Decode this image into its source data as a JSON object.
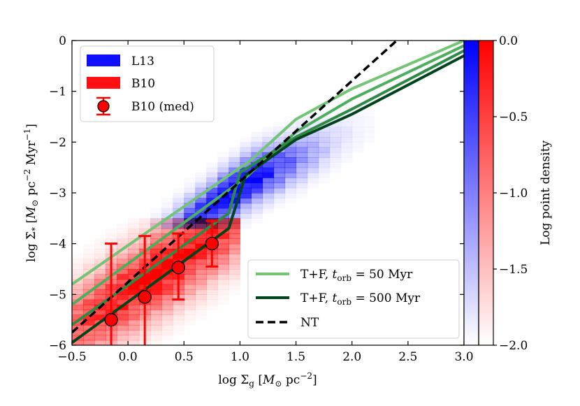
{
  "chart_data": {
    "type": "scatter",
    "title": "",
    "xlabel": "log Σ_g [M_⊙ pc^-2]",
    "ylabel": "log Σ̇_* [M_⊙ pc^-2 Myr^-1]",
    "xlim": [
      -0.5,
      3.0
    ],
    "ylim": [
      -6,
      0
    ],
    "xticks": [
      "−0.5",
      "0.0",
      "0.5",
      "1.0",
      "1.5",
      "2.0",
      "2.5",
      "3.0"
    ],
    "yticks": [
      "−6",
      "−5",
      "−4",
      "−3",
      "−2",
      "−1",
      "0"
    ],
    "xtick_values": [
      -0.5,
      0.0,
      0.5,
      1.0,
      1.5,
      2.0,
      2.5,
      3.0
    ],
    "ytick_values": [
      -6,
      -5,
      -4,
      -3,
      -2,
      -1,
      0
    ],
    "colorbar": {
      "label": "Log point density",
      "range": [
        -2.0,
        0.0
      ],
      "ticks": [
        "−2.0",
        "−1.5",
        "−1.0",
        "−0.5",
        "0.0"
      ],
      "tick_values": [
        -2.0,
        -1.5,
        -1.0,
        -0.5,
        0.0
      ]
    },
    "legend_upper": {
      "placement": "top-left",
      "entries": [
        {
          "label": "L13",
          "color": "#1010ff"
        },
        {
          "label": "B10",
          "color": "#ff1010"
        },
        {
          "label": "B10 (med)",
          "color": "#ff0000"
        }
      ]
    },
    "legend_lower": {
      "placement": "bottom-right",
      "entries": [
        {
          "label_prefix": "T+F, ",
          "label_var": "t",
          "label_sub": "orb",
          "label_suffix": " = 50 Myr",
          "color": "#74c476"
        },
        {
          "label_prefix": "T+F, ",
          "label_var": "t",
          "label_sub": "orb",
          "label_suffix": " = 500 Myr",
          "color": "#00441b"
        },
        {
          "label": "NT",
          "color": "#000000"
        }
      ]
    },
    "b10_median": {
      "x": [
        -0.15,
        0.15,
        0.45,
        0.75
      ],
      "y": [
        -5.5,
        -5.05,
        -4.47,
        -4.0
      ],
      "yerr_low": [
        -6.0,
        -6.0,
        -5.1,
        -4.45
      ],
      "yerr_high": [
        -4.0,
        -3.85,
        -3.8,
        -3.55
      ]
    },
    "nt_line": {
      "x": [
        -0.5,
        2.4
      ],
      "y": [
        -5.75,
        0.0
      ]
    },
    "tf_models": [
      {
        "name": "tf-50",
        "color": "#74c476",
        "x": [
          -0.5,
          1.1,
          1.5,
          2.0,
          3.0
        ],
        "y": [
          -4.8,
          -2.35,
          -1.55,
          -0.95,
          0.0
        ]
      },
      {
        "name": "tf-mid1",
        "color": "#4daf5e",
        "x": [
          -0.5,
          1.05,
          1.5,
          2.0,
          3.0
        ],
        "y": [
          -5.2,
          -2.7,
          -1.8,
          -1.15,
          -0.1
        ]
      },
      {
        "name": "tf-mid2",
        "color": "#2e8b45",
        "x": [
          -0.5,
          0.9,
          1.0,
          1.5,
          2.0,
          3.0
        ],
        "y": [
          -5.6,
          -3.4,
          -2.6,
          -1.9,
          -1.35,
          -0.2
        ]
      },
      {
        "name": "tf-500",
        "color": "#00441b",
        "x": [
          -0.5,
          0.9,
          1.05,
          1.5,
          2.0,
          3.0
        ],
        "y": [
          -5.95,
          -3.7,
          -2.65,
          -1.95,
          -1.45,
          -0.3
        ]
      }
    ],
    "b10_density": {
      "color": "#ff0000",
      "bin_size": 0.1,
      "x_range": [
        -0.5,
        1.0
      ],
      "y_range": [
        -6.0,
        -3.5
      ],
      "center": [
        0.3,
        -4.7
      ]
    },
    "l13_density": {
      "color": "#0000ff",
      "bin_size": 0.1,
      "x_range": [
        0.2,
        2.5
      ],
      "y_range": [
        -3.7,
        -1.2
      ],
      "center": [
        0.95,
        -2.6
      ]
    }
  }
}
